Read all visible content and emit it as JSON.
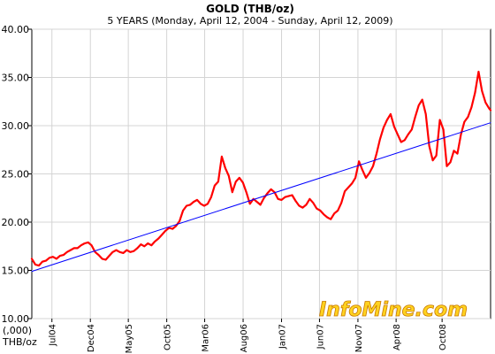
{
  "chart_data": {
    "type": "line",
    "title": "GOLD (THB/oz)",
    "subtitle": "5 YEARS (Monday, April 12, 2004  -  Sunday, April 12, 2009)",
    "y_unit_line1": "(,000)",
    "y_unit_line2": "THB/oz",
    "ylim": [
      10,
      40
    ],
    "y_ticks": [
      "10.00",
      "15.00",
      "20.00",
      "25.00",
      "30.00",
      "35.00",
      "40.00"
    ],
    "x_start": "2004-04-12",
    "x_end": "2009-04-12",
    "x_ticks": [
      {
        "label": "Jul04",
        "date": "2004-07-01"
      },
      {
        "label": "Dec04",
        "date": "2004-12-01"
      },
      {
        "label": "May05",
        "date": "2005-05-01"
      },
      {
        "label": "Oct05",
        "date": "2005-10-01"
      },
      {
        "label": "Mar06",
        "date": "2006-03-01"
      },
      {
        "label": "Aug06",
        "date": "2006-08-01"
      },
      {
        "label": "Jan07",
        "date": "2007-01-01"
      },
      {
        "label": "Jun07",
        "date": "2007-06-01"
      },
      {
        "label": "Nov07",
        "date": "2007-11-01"
      },
      {
        "label": "Apr08",
        "date": "2008-04-01"
      },
      {
        "label": "Oct08",
        "date": "2008-10-01"
      }
    ],
    "grid": true,
    "series": [
      {
        "color": "#ff0000",
        "points": [
          [
            "2004-04-12",
            16.2
          ],
          [
            "2004-04-26",
            15.6
          ],
          [
            "2004-05-10",
            15.5
          ],
          [
            "2004-05-24",
            15.9
          ],
          [
            "2004-06-07",
            16.0
          ],
          [
            "2004-06-21",
            16.3
          ],
          [
            "2004-07-05",
            16.4
          ],
          [
            "2004-07-19",
            16.2
          ],
          [
            "2004-08-02",
            16.5
          ],
          [
            "2004-08-16",
            16.6
          ],
          [
            "2004-08-30",
            16.9
          ],
          [
            "2004-09-13",
            17.1
          ],
          [
            "2004-09-27",
            17.3
          ],
          [
            "2004-10-11",
            17.3
          ],
          [
            "2004-10-25",
            17.6
          ],
          [
            "2004-11-08",
            17.8
          ],
          [
            "2004-11-22",
            17.9
          ],
          [
            "2004-12-06",
            17.6
          ],
          [
            "2004-12-20",
            16.9
          ],
          [
            "2005-01-03",
            16.6
          ],
          [
            "2005-01-17",
            16.2
          ],
          [
            "2005-01-31",
            16.1
          ],
          [
            "2005-02-14",
            16.5
          ],
          [
            "2005-02-28",
            16.9
          ],
          [
            "2005-03-14",
            17.1
          ],
          [
            "2005-03-28",
            16.9
          ],
          [
            "2005-04-11",
            16.8
          ],
          [
            "2005-04-25",
            17.1
          ],
          [
            "2005-05-09",
            16.9
          ],
          [
            "2005-05-23",
            17.0
          ],
          [
            "2005-06-06",
            17.3
          ],
          [
            "2005-06-20",
            17.7
          ],
          [
            "2005-07-04",
            17.5
          ],
          [
            "2005-07-18",
            17.8
          ],
          [
            "2005-08-01",
            17.6
          ],
          [
            "2005-08-15",
            18.0
          ],
          [
            "2005-08-29",
            18.3
          ],
          [
            "2005-09-12",
            18.7
          ],
          [
            "2005-09-26",
            19.1
          ],
          [
            "2005-10-10",
            19.4
          ],
          [
            "2005-10-24",
            19.3
          ],
          [
            "2005-11-07",
            19.6
          ],
          [
            "2005-11-21",
            20.1
          ],
          [
            "2005-12-05",
            21.2
          ],
          [
            "2005-12-19",
            21.7
          ],
          [
            "2006-01-02",
            21.8
          ],
          [
            "2006-01-16",
            22.1
          ],
          [
            "2006-01-30",
            22.3
          ],
          [
            "2006-02-13",
            21.9
          ],
          [
            "2006-02-27",
            21.7
          ],
          [
            "2006-03-13",
            21.9
          ],
          [
            "2006-03-27",
            22.6
          ],
          [
            "2006-04-10",
            23.8
          ],
          [
            "2006-04-24",
            24.2
          ],
          [
            "2006-05-08",
            26.8
          ],
          [
            "2006-05-22",
            25.6
          ],
          [
            "2006-06-05",
            24.8
          ],
          [
            "2006-06-19",
            23.1
          ],
          [
            "2006-07-03",
            24.2
          ],
          [
            "2006-07-17",
            24.6
          ],
          [
            "2006-07-31",
            24.1
          ],
          [
            "2006-08-14",
            23.1
          ],
          [
            "2006-08-28",
            21.9
          ],
          [
            "2006-09-11",
            22.4
          ],
          [
            "2006-09-25",
            22.1
          ],
          [
            "2006-10-09",
            21.8
          ],
          [
            "2006-10-23",
            22.5
          ],
          [
            "2006-11-06",
            23.0
          ],
          [
            "2006-11-20",
            23.4
          ],
          [
            "2006-12-04",
            23.1
          ],
          [
            "2006-12-18",
            22.4
          ],
          [
            "2007-01-01",
            22.3
          ],
          [
            "2007-01-15",
            22.6
          ],
          [
            "2007-01-29",
            22.7
          ],
          [
            "2007-02-12",
            22.8
          ],
          [
            "2007-02-26",
            22.2
          ],
          [
            "2007-03-12",
            21.7
          ],
          [
            "2007-03-26",
            21.5
          ],
          [
            "2007-04-09",
            21.8
          ],
          [
            "2007-04-23",
            22.4
          ],
          [
            "2007-05-07",
            22.0
          ],
          [
            "2007-05-21",
            21.4
          ],
          [
            "2007-06-04",
            21.2
          ],
          [
            "2007-06-18",
            20.8
          ],
          [
            "2007-07-02",
            20.5
          ],
          [
            "2007-07-16",
            20.3
          ],
          [
            "2007-07-30",
            20.9
          ],
          [
            "2007-08-13",
            21.2
          ],
          [
            "2007-08-27",
            22.0
          ],
          [
            "2007-09-10",
            23.2
          ],
          [
            "2007-09-24",
            23.6
          ],
          [
            "2007-10-08",
            24.0
          ],
          [
            "2007-10-22",
            24.6
          ],
          [
            "2007-11-05",
            26.3
          ],
          [
            "2007-11-19",
            25.4
          ],
          [
            "2007-12-03",
            24.6
          ],
          [
            "2007-12-17",
            25.1
          ],
          [
            "2007-12-31",
            25.8
          ],
          [
            "2008-01-14",
            27.1
          ],
          [
            "2008-01-28",
            28.6
          ],
          [
            "2008-02-11",
            29.8
          ],
          [
            "2008-02-25",
            30.6
          ],
          [
            "2008-03-10",
            31.2
          ],
          [
            "2008-03-24",
            29.9
          ],
          [
            "2008-04-07",
            29.1
          ],
          [
            "2008-04-21",
            28.3
          ],
          [
            "2008-05-05",
            28.5
          ],
          [
            "2008-05-19",
            29.1
          ],
          [
            "2008-06-02",
            29.6
          ],
          [
            "2008-06-16",
            30.9
          ],
          [
            "2008-06-30",
            32.1
          ],
          [
            "2008-07-14",
            32.7
          ],
          [
            "2008-07-28",
            31.2
          ],
          [
            "2008-08-11",
            27.9
          ],
          [
            "2008-08-25",
            26.4
          ],
          [
            "2008-09-08",
            26.9
          ],
          [
            "2008-09-22",
            30.6
          ],
          [
            "2008-10-06",
            29.6
          ],
          [
            "2008-10-20",
            25.8
          ],
          [
            "2008-11-03",
            26.2
          ],
          [
            "2008-11-17",
            27.4
          ],
          [
            "2008-12-01",
            27.1
          ],
          [
            "2008-12-15",
            29.1
          ],
          [
            "2008-12-29",
            30.4
          ],
          [
            "2009-01-12",
            30.9
          ],
          [
            "2009-01-26",
            31.9
          ],
          [
            "2009-02-09",
            33.4
          ],
          [
            "2009-02-23",
            35.6
          ],
          [
            "2009-03-09",
            33.6
          ],
          [
            "2009-03-23",
            32.4
          ],
          [
            "2009-04-06",
            31.8
          ],
          [
            "2009-04-12",
            31.6
          ]
        ]
      },
      {
        "color": "#0000ff",
        "points": [
          [
            "2004-04-12",
            14.9
          ],
          [
            "2009-04-12",
            30.3
          ]
        ]
      }
    ]
  },
  "watermark": {
    "text_left": "InfoMine",
    "text_right": ".com",
    "fill_color": "#ffd21f",
    "stroke_color": "#c87a00"
  }
}
